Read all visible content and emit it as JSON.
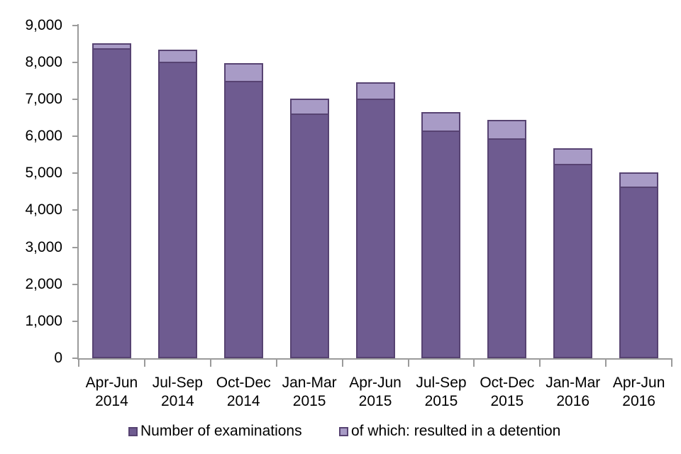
{
  "chart_data": {
    "type": "bar",
    "stacked": true,
    "title": "",
    "categories": [
      "Apr-Jun 2014",
      "Jul-Sep 2014",
      "Oct-Dec 2014",
      "Jan-Mar 2015",
      "Apr-Jun 2015",
      "Jul-Sep 2015",
      "Oct-Dec 2015",
      "Jan-Mar 2016",
      "Apr-Jun 2016"
    ],
    "series": [
      {
        "name": "Number of examinations",
        "color": "#6e5b90",
        "values": [
          8380,
          8020,
          7500,
          6620,
          7020,
          6150,
          5950,
          5260,
          4650
        ]
      },
      {
        "name": "of which: resulted in a detention",
        "color": "#a89bc6",
        "values": [
          140,
          330,
          470,
          390,
          440,
          500,
          490,
          410,
          380
        ]
      }
    ],
    "bar_border_color": "#574372",
    "axis_color": "#9b9b9b",
    "text_color": "#000000",
    "ylim": [
      0,
      9000
    ],
    "y_tick_interval": 1000,
    "y_tick_labels": [
      "0",
      "1,000",
      "2,000",
      "3,000",
      "4,000",
      "5,000",
      "6,000",
      "7,000",
      "8,000",
      "9,000"
    ],
    "grid": false,
    "legend_position": "bottom"
  }
}
